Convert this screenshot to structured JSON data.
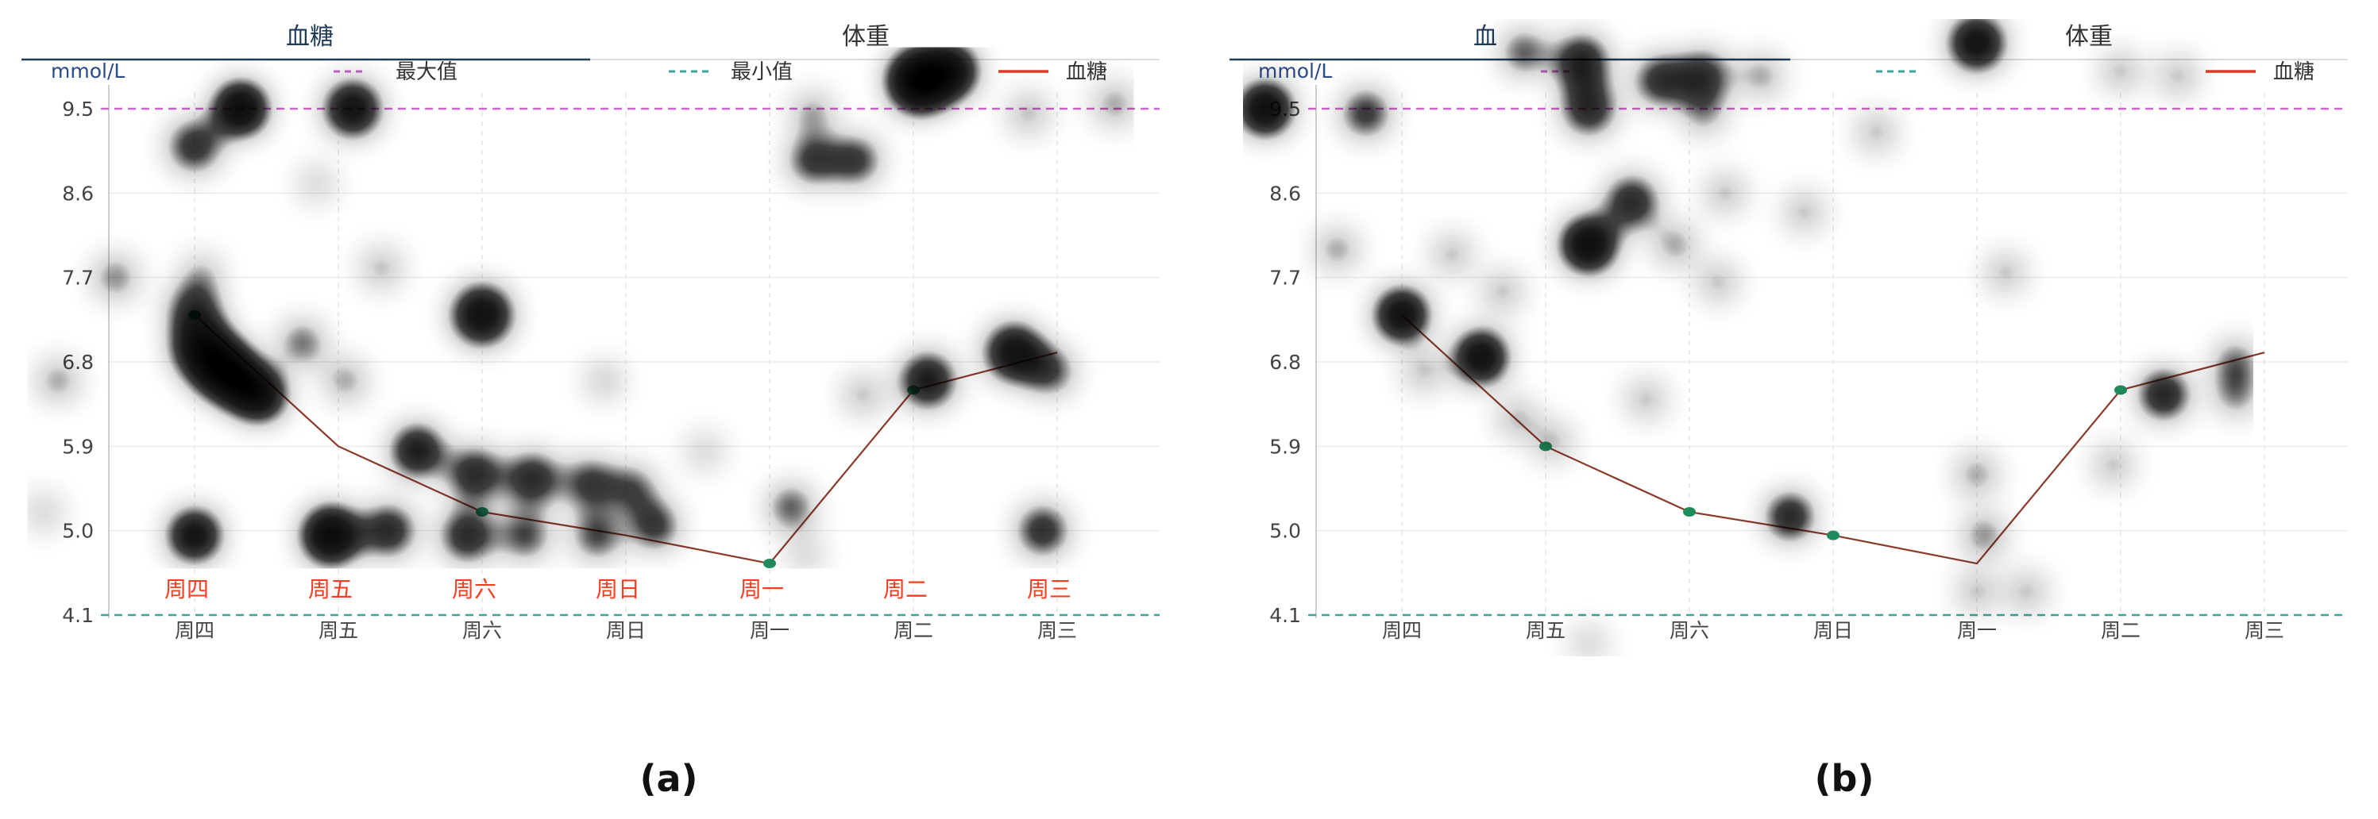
{
  "captions": [
    "(a)",
    "(b)"
  ],
  "colors": {
    "max_line": "#cc66cc",
    "min_line": "#3aa59a",
    "glucose_line": "#8b3a2a",
    "glucose_point": "#1f8c5c",
    "legend_glucose": "#e03a2a",
    "day_label": "#ff3b1f",
    "tab_underline": "#1f3b57",
    "heat_low": "#33cc00",
    "heat_mid": "#ffee00",
    "heat_high": "#ff0000"
  },
  "panels": [
    {
      "tabs": [
        {
          "label": "血糖",
          "active": true
        },
        {
          "label": "体重",
          "active": false
        }
      ],
      "unit": "mmol/L",
      "legend": {
        "max": "最大值",
        "min": "最小值",
        "glucose": "血糖"
      },
      "day_labels": [
        "周四",
        "周五",
        "周六",
        "周日",
        "周一",
        "周二",
        "周三"
      ],
      "heatmap": [
        {
          "x": 0.32,
          "y": 9.5,
          "r": 28,
          "w": 1.0
        },
        {
          "x": 1.1,
          "y": 9.5,
          "r": 30,
          "w": 0.8
        },
        {
          "x": 0.0,
          "y": 9.1,
          "r": 30,
          "w": 0.55
        },
        {
          "x": 0.0,
          "y": 7.35,
          "r": 30,
          "w": 0.55
        },
        {
          "x": -0.95,
          "y": 6.6,
          "r": 22,
          "w": 0.45
        },
        {
          "x": -0.55,
          "y": 7.7,
          "r": 24,
          "w": 0.45
        },
        {
          "x": 0.05,
          "y": 6.95,
          "r": 34,
          "w": 0.75
        },
        {
          "x": 0.18,
          "y": 6.75,
          "r": 34,
          "w": 0.95
        },
        {
          "x": 0.3,
          "y": 6.6,
          "r": 30,
          "w": 1.0
        },
        {
          "x": 0.45,
          "y": 6.45,
          "r": 28,
          "w": 0.95
        },
        {
          "x": 0.75,
          "y": 7.0,
          "r": 24,
          "w": 0.5
        },
        {
          "x": 0.05,
          "y": 7.75,
          "r": 20,
          "w": 0.4
        },
        {
          "x": 0.85,
          "y": 8.7,
          "r": 18,
          "w": 0.4
        },
        {
          "x": 1.3,
          "y": 7.8,
          "r": 22,
          "w": 0.4
        },
        {
          "x": 1.05,
          "y": 6.6,
          "r": 22,
          "w": 0.45
        },
        {
          "x": 1.55,
          "y": 5.85,
          "r": 28,
          "w": 0.75
        },
        {
          "x": 2.0,
          "y": 7.3,
          "r": 34,
          "w": 0.75
        },
        {
          "x": 1.95,
          "y": 5.6,
          "r": 30,
          "w": 0.6
        },
        {
          "x": 2.35,
          "y": 5.55,
          "r": 30,
          "w": 0.6
        },
        {
          "x": 2.75,
          "y": 5.5,
          "r": 28,
          "w": 0.55
        },
        {
          "x": 3.05,
          "y": 5.45,
          "r": 24,
          "w": 0.55
        },
        {
          "x": 2.85,
          "y": 6.6,
          "r": 18,
          "w": 0.45
        },
        {
          "x": 0.0,
          "y": 4.95,
          "r": 28,
          "w": 0.85
        },
        {
          "x": 0.95,
          "y": 4.95,
          "r": 32,
          "w": 0.9
        },
        {
          "x": 1.35,
          "y": 5.0,
          "r": 28,
          "w": 0.65
        },
        {
          "x": 1.9,
          "y": 4.95,
          "r": 30,
          "w": 0.6
        },
        {
          "x": 2.3,
          "y": 4.95,
          "r": 26,
          "w": 0.55
        },
        {
          "x": 2.8,
          "y": 4.95,
          "r": 26,
          "w": 0.55
        },
        {
          "x": 3.2,
          "y": 5.05,
          "r": 26,
          "w": 0.6
        },
        {
          "x": 3.55,
          "y": 5.85,
          "r": 18,
          "w": 0.4
        },
        {
          "x": 4.15,
          "y": 5.25,
          "r": 24,
          "w": 0.55
        },
        {
          "x": 4.25,
          "y": 4.75,
          "r": 18,
          "w": 0.4
        },
        {
          "x": 4.3,
          "y": 8.95,
          "r": 26,
          "w": 0.6
        },
        {
          "x": 4.6,
          "y": 8.95,
          "r": 26,
          "w": 0.6
        },
        {
          "x": 4.3,
          "y": 9.45,
          "r": 22,
          "w": 0.45
        },
        {
          "x": 5.05,
          "y": 9.8,
          "r": 36,
          "w": 1.0
        },
        {
          "x": 5.25,
          "y": 9.9,
          "r": 30,
          "w": 0.9
        },
        {
          "x": 5.8,
          "y": 9.45,
          "r": 22,
          "w": 0.4
        },
        {
          "x": 6.4,
          "y": 9.55,
          "r": 24,
          "w": 0.4
        },
        {
          "x": 4.65,
          "y": 6.45,
          "r": 20,
          "w": 0.45
        },
        {
          "x": 5.1,
          "y": 6.6,
          "r": 30,
          "w": 0.7
        },
        {
          "x": 5.7,
          "y": 6.9,
          "r": 32,
          "w": 0.75
        },
        {
          "x": 5.95,
          "y": 6.7,
          "r": 26,
          "w": 0.55
        },
        {
          "x": 5.9,
          "y": 5.0,
          "r": 28,
          "w": 0.6
        },
        {
          "x": -1.05,
          "y": 5.2,
          "r": 20,
          "w": 0.35
        }
      ]
    },
    {
      "tabs": [
        {
          "label": "血",
          "active": true
        },
        {
          "label": "体重",
          "active": false
        }
      ],
      "unit": "mmol/L",
      "legend": {
        "max": "",
        "min": "",
        "glucose": "血糖"
      },
      "day_labels": [],
      "heatmap": [
        {
          "x": -0.95,
          "y": 9.5,
          "r": 28,
          "w": 0.95
        },
        {
          "x": -0.25,
          "y": 9.45,
          "r": 26,
          "w": 0.6
        },
        {
          "x": -0.45,
          "y": 8.0,
          "r": 22,
          "w": 0.45
        },
        {
          "x": 0.0,
          "y": 7.3,
          "r": 28,
          "w": 0.9
        },
        {
          "x": 0.15,
          "y": 6.7,
          "r": 20,
          "w": 0.45
        },
        {
          "x": 0.35,
          "y": 7.95,
          "r": 20,
          "w": 0.45
        },
        {
          "x": 0.55,
          "y": 6.85,
          "r": 28,
          "w": 0.9
        },
        {
          "x": 0.7,
          "y": 7.55,
          "r": 20,
          "w": 0.45
        },
        {
          "x": 0.8,
          "y": 6.2,
          "r": 20,
          "w": 0.45
        },
        {
          "x": 1.05,
          "y": 5.95,
          "r": 20,
          "w": 0.45
        },
        {
          "x": 0.85,
          "y": 10.1,
          "r": 24,
          "w": 0.55
        },
        {
          "x": 1.25,
          "y": 10.0,
          "r": 30,
          "w": 0.65
        },
        {
          "x": 1.3,
          "y": 9.5,
          "r": 30,
          "w": 0.6
        },
        {
          "x": 1.8,
          "y": 9.8,
          "r": 28,
          "w": 0.6
        },
        {
          "x": 2.1,
          "y": 9.85,
          "r": 28,
          "w": 0.6
        },
        {
          "x": 2.5,
          "y": 9.85,
          "r": 22,
          "w": 0.45
        },
        {
          "x": 2.1,
          "y": 9.45,
          "r": 22,
          "w": 0.45
        },
        {
          "x": 1.3,
          "y": 8.05,
          "r": 30,
          "w": 0.9
        },
        {
          "x": 1.6,
          "y": 8.5,
          "r": 30,
          "w": 0.6
        },
        {
          "x": 1.9,
          "y": 8.05,
          "r": 22,
          "w": 0.45
        },
        {
          "x": 2.25,
          "y": 8.6,
          "r": 20,
          "w": 0.45
        },
        {
          "x": 2.2,
          "y": 7.65,
          "r": 20,
          "w": 0.45
        },
        {
          "x": 1.7,
          "y": 6.4,
          "r": 20,
          "w": 0.45
        },
        {
          "x": 2.8,
          "y": 8.4,
          "r": 20,
          "w": 0.45
        },
        {
          "x": 3.3,
          "y": 9.25,
          "r": 20,
          "w": 0.45
        },
        {
          "x": 2.7,
          "y": 5.15,
          "r": 24,
          "w": 0.8
        },
        {
          "x": 1.3,
          "y": 3.8,
          "r": 18,
          "w": 0.4
        },
        {
          "x": 4.0,
          "y": 10.2,
          "r": 30,
          "w": 0.8
        },
        {
          "x": 5.0,
          "y": 9.9,
          "r": 20,
          "w": 0.45
        },
        {
          "x": 5.4,
          "y": 9.85,
          "r": 20,
          "w": 0.45
        },
        {
          "x": 4.2,
          "y": 7.75,
          "r": 20,
          "w": 0.45
        },
        {
          "x": 5.3,
          "y": 6.45,
          "r": 26,
          "w": 0.75
        },
        {
          "x": 5.8,
          "y": 6.8,
          "r": 22,
          "w": 0.55
        },
        {
          "x": 5.8,
          "y": 6.45,
          "r": 22,
          "w": 0.5
        },
        {
          "x": 4.0,
          "y": 5.6,
          "r": 22,
          "w": 0.45
        },
        {
          "x": 4.05,
          "y": 4.95,
          "r": 22,
          "w": 0.5
        },
        {
          "x": 4.0,
          "y": 4.35,
          "r": 20,
          "w": 0.45
        },
        {
          "x": 4.35,
          "y": 4.35,
          "r": 20,
          "w": 0.45
        },
        {
          "x": 4.95,
          "y": 5.7,
          "r": 20,
          "w": 0.45
        },
        {
          "x": 1.0,
          "y": 1.0,
          "r": 0,
          "w": 0
        }
      ]
    }
  ],
  "chart_data": [
    {
      "type": "line",
      "x_categories": [
        "周四",
        "周五",
        "周六",
        "周日",
        "周一",
        "周二",
        "周三"
      ],
      "yticks": [
        4.1,
        5.0,
        5.9,
        6.8,
        7.7,
        8.6,
        9.5
      ],
      "ylim": [
        4.1,
        9.5
      ],
      "reference_lines": [
        {
          "name": "最大值",
          "value": 9.5
        },
        {
          "name": "最小值",
          "value": 4.1
        }
      ],
      "series": [
        {
          "name": "血糖",
          "x": [
            0,
            1,
            2,
            3,
            4,
            5,
            6
          ],
          "values": [
            7.3,
            5.9,
            5.2,
            4.95,
            4.65,
            6.5,
            6.9
          ]
        }
      ],
      "marker_x": [
        0,
        2,
        4,
        5
      ],
      "grid": true,
      "legend": "top"
    },
    {
      "type": "line",
      "x_categories": [
        "周四",
        "周五",
        "周六",
        "周日",
        "周一",
        "周二",
        "周三"
      ],
      "yticks": [
        4.1,
        5.0,
        5.9,
        6.8,
        7.7,
        8.6,
        9.5
      ],
      "ylim": [
        4.1,
        9.5
      ],
      "reference_lines": [
        {
          "name": "最大值",
          "value": 9.5
        },
        {
          "name": "最小值",
          "value": 4.1
        }
      ],
      "series": [
        {
          "name": "血糖",
          "x": [
            0,
            1,
            2,
            3,
            4,
            5,
            6
          ],
          "values": [
            7.3,
            5.9,
            5.2,
            4.95,
            4.65,
            6.5,
            6.9
          ]
        }
      ],
      "marker_x": [
        1,
        2,
        3,
        5
      ],
      "grid": true,
      "legend": "top"
    }
  ]
}
